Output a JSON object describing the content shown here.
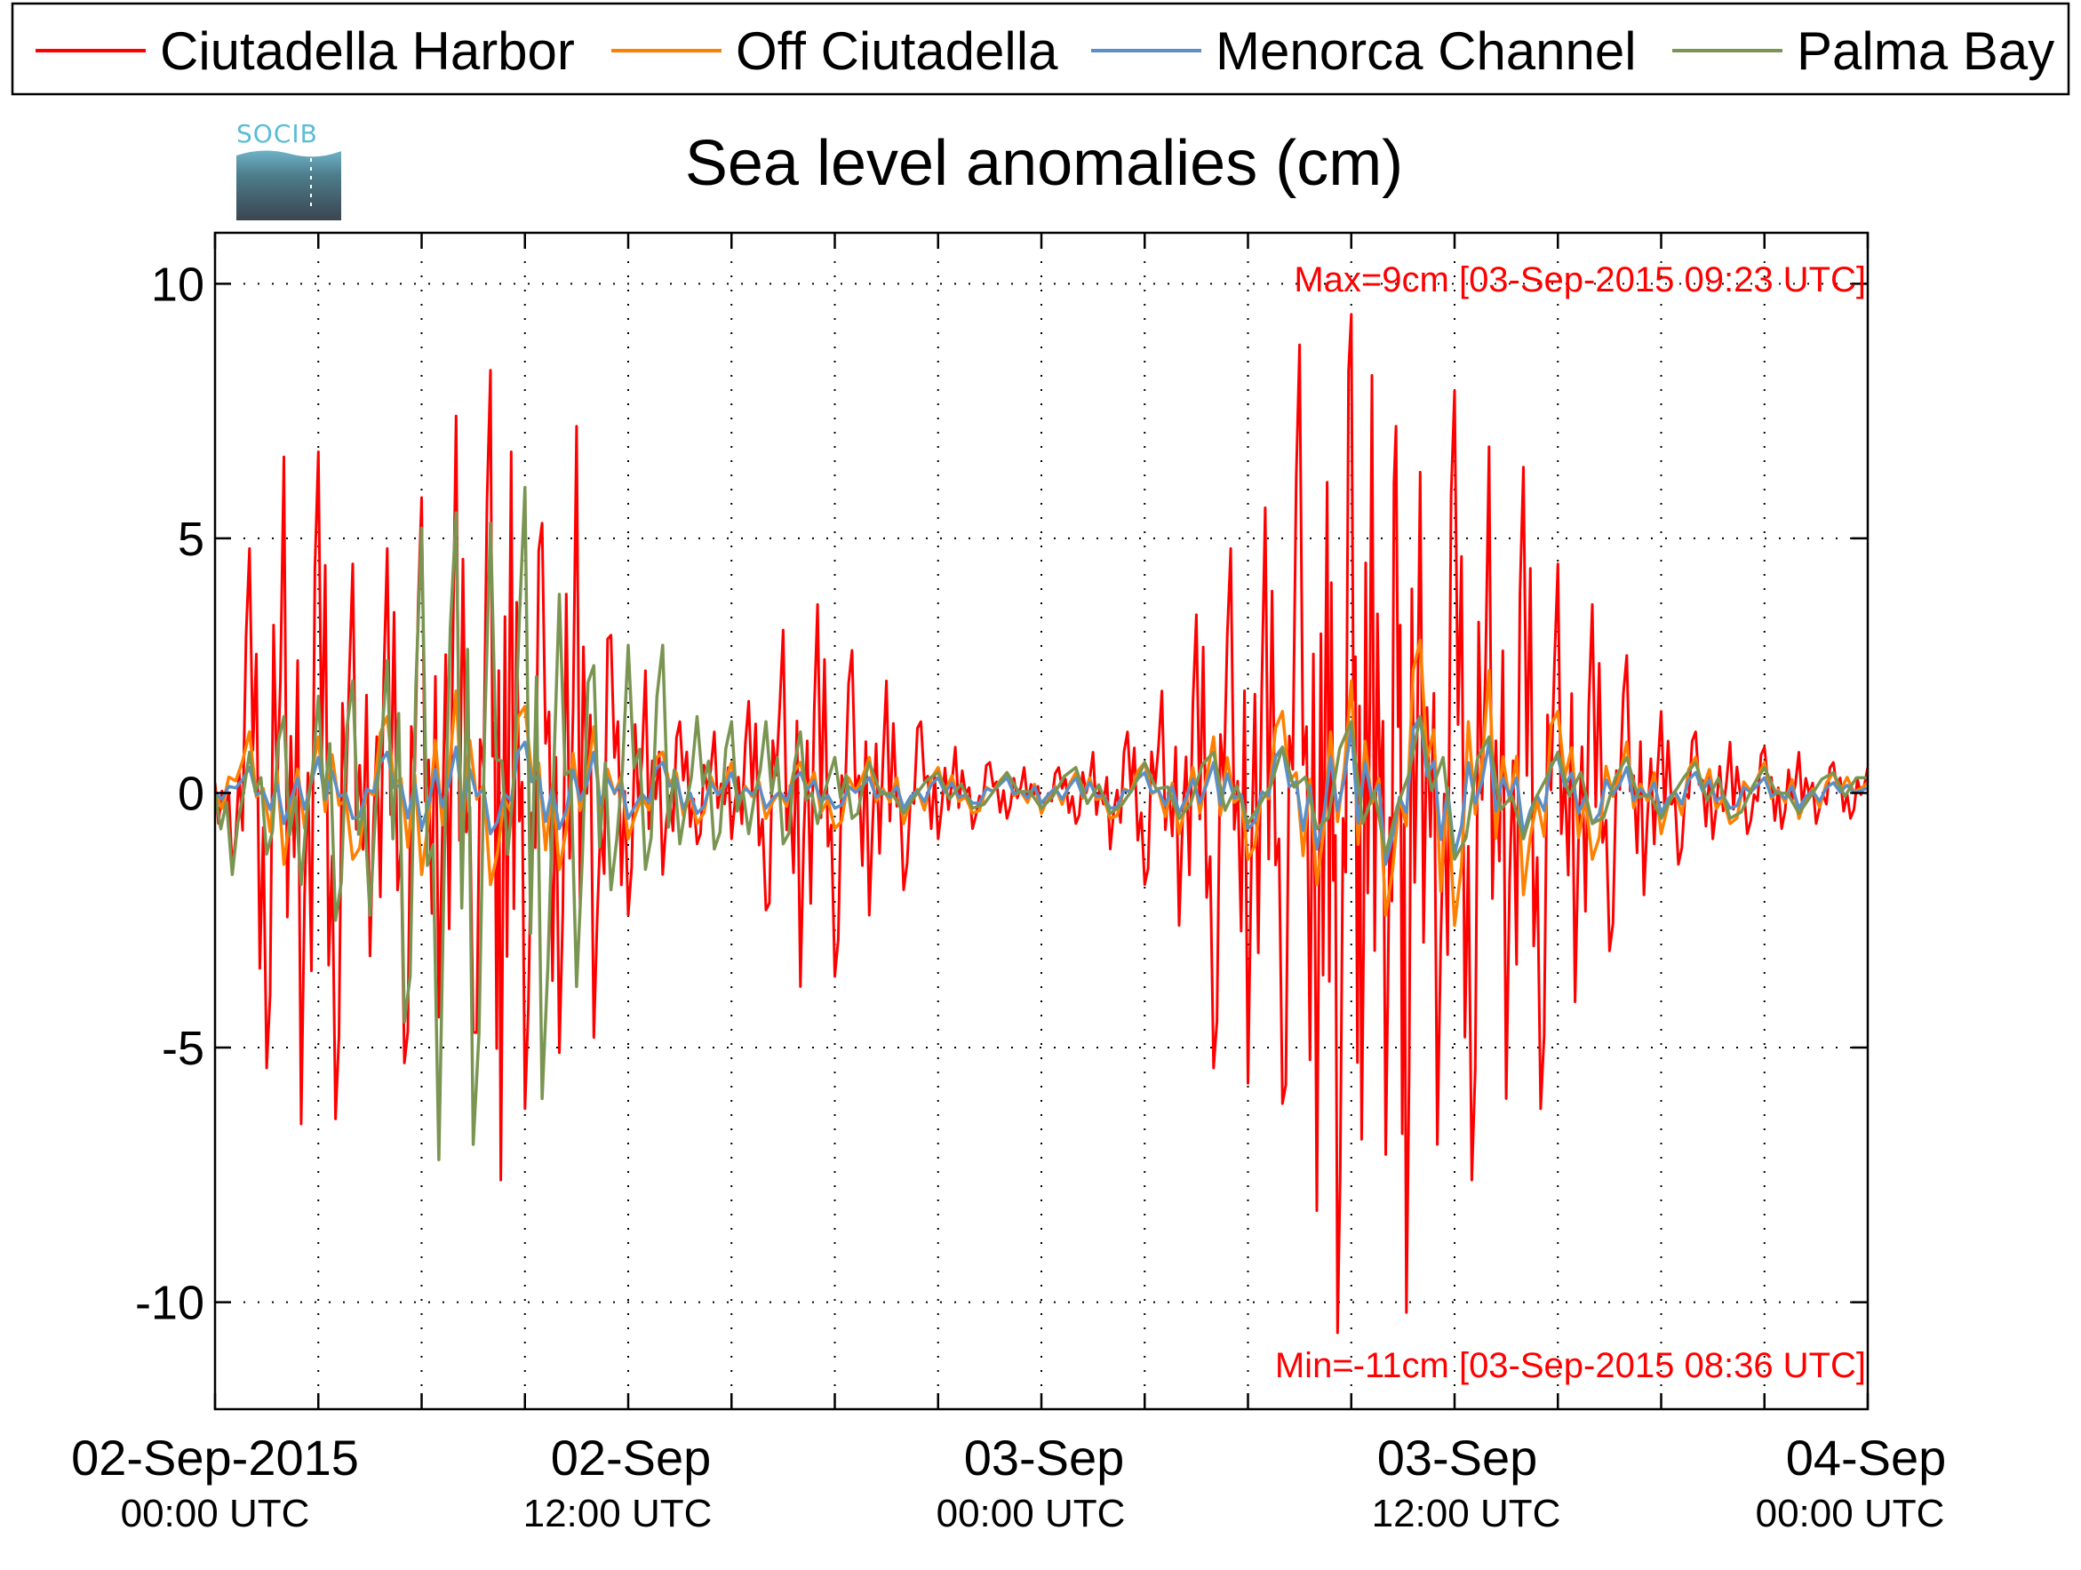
{
  "chart_data": {
    "type": "line",
    "title": "Sea level anomalies (cm)",
    "xlabel": "",
    "ylabel": "",
    "ylim": [
      -12.1,
      11
    ],
    "xlim_hours": [
      0,
      48
    ],
    "y_ticks": [
      10,
      5,
      0,
      -5,
      -10
    ],
    "y_tick_labels": [
      "10",
      "5",
      "0",
      "-5",
      "-10"
    ],
    "x_ticks": [
      {
        "hours": 0,
        "date": "02-Sep-2015",
        "time": "00:00 UTC"
      },
      {
        "hours": 12,
        "date": "02-Sep",
        "time": "12:00 UTC"
      },
      {
        "hours": 24,
        "date": "03-Sep",
        "time": "00:00 UTC"
      },
      {
        "hours": 36,
        "date": "03-Sep",
        "time": "12:00 UTC"
      },
      {
        "hours": 48,
        "date": "04-Sep",
        "time": "00:00 UTC"
      }
    ],
    "x_minor_ticks_hours": [
      3,
      6,
      9,
      15,
      18,
      21,
      27,
      30,
      33,
      39,
      42,
      45
    ],
    "grid": true,
    "legend_position": "top",
    "annotations": {
      "max": "Max=9cm [03-Sep-2015 09:23 UTC]",
      "min": "Min=-11cm [03-Sep-2015 08:36 UTC]"
    },
    "series": [
      {
        "name": "Ciutadella Harbor",
        "color": "#ff0000",
        "x": [
          0,
          0.5,
          1,
          1.5,
          2,
          2.5,
          3,
          3.5,
          4,
          4.5,
          5,
          5.5,
          6,
          6.5,
          7,
          7.5,
          8,
          8.3,
          8.6,
          9,
          9.5,
          10,
          10.5,
          11,
          11.5,
          12,
          12.5,
          13,
          13.5,
          14,
          14.5,
          15,
          15.5,
          16,
          16.5,
          17,
          17.5,
          18,
          18.5,
          19,
          19.5,
          20,
          20.5,
          21,
          21.5,
          22,
          22.5,
          23,
          23.5,
          24,
          24.5,
          25,
          25.5,
          26,
          26.5,
          27,
          27.5,
          28,
          28.5,
          29,
          29.5,
          30,
          30.5,
          31,
          31.5,
          32,
          32.3,
          32.6,
          33,
          33.3,
          33.6,
          34,
          34.3,
          34.6,
          35,
          35.5,
          36,
          36.5,
          37,
          37.5,
          38,
          38.5,
          39,
          39.5,
          40,
          40.5,
          41,
          41.5,
          42,
          42.5,
          43,
          43.5,
          44,
          44.5,
          45,
          45.5,
          46,
          46.5,
          47,
          47.5,
          48
        ],
        "y": [
          0.2,
          -1.5,
          4.8,
          -5.4,
          6.6,
          -6.5,
          6.7,
          -6.4,
          4.5,
          -3.2,
          4.8,
          -5.3,
          5.8,
          -4.4,
          7.4,
          -4.7,
          8.3,
          -7.6,
          6.7,
          -6.2,
          5.3,
          -5.1,
          7.2,
          -4.8,
          3.1,
          -2.4,
          2.4,
          -1.6,
          1.4,
          -1.0,
          1.2,
          -0.9,
          1.8,
          -2.3,
          3.2,
          -3.8,
          3.7,
          -3.6,
          2.8,
          -2.4,
          2.2,
          -1.9,
          1.4,
          -0.9,
          0.9,
          -0.7,
          0.6,
          -0.5,
          0.5,
          -0.4,
          0.5,
          -0.6,
          0.8,
          -1.1,
          1.2,
          -1.8,
          2.0,
          -2.6,
          3.5,
          -5.4,
          4.8,
          -5.7,
          5.6,
          -6.1,
          8.8,
          -8.2,
          6.1,
          -10.6,
          9.4,
          -6.8,
          8.2,
          -7.1,
          7.2,
          -10.2,
          6.3,
          -6.9,
          7.9,
          -7.6,
          6.8,
          -6.0,
          6.4,
          -6.2,
          4.5,
          -4.1,
          3.7,
          -3.1,
          2.7,
          -2.0,
          1.6,
          -1.4,
          1.2,
          -0.9,
          1.0,
          -0.8,
          0.9,
          -0.7,
          0.8,
          -0.6,
          0.6,
          -0.5,
          0.5
        ]
      },
      {
        "name": "Off Ciutadella",
        "color": "#ff8000",
        "x": [
          0,
          1,
          2,
          3,
          4,
          5,
          6,
          7,
          8,
          9,
          10,
          11,
          12,
          13,
          14,
          15,
          16,
          17,
          18,
          19,
          20,
          21,
          22,
          23,
          24,
          25,
          26,
          27,
          28,
          29,
          30,
          31,
          32,
          33,
          34,
          35,
          36,
          37,
          38,
          39,
          40,
          41,
          42,
          43,
          44,
          45,
          46,
          47,
          48
        ],
        "y": [
          0,
          1.2,
          -1.4,
          1.1,
          -1.3,
          1.5,
          -1.6,
          2.0,
          -1.8,
          1.7,
          -1.5,
          1.3,
          -0.9,
          0.8,
          -0.6,
          0.6,
          -0.5,
          0.6,
          -0.7,
          0.7,
          -0.6,
          0.5,
          -0.4,
          0.4,
          -0.4,
          0.4,
          -0.5,
          0.6,
          -0.8,
          1.1,
          -1.3,
          1.6,
          -1.8,
          2.2,
          -2.4,
          3.0,
          -2.6,
          2.4,
          -2.0,
          1.6,
          -1.3,
          1.0,
          -0.8,
          0.7,
          -0.6,
          0.6,
          -0.5,
          0.4,
          0.2
        ]
      },
      {
        "name": "Menorca Channel",
        "color": "#5b8fc7",
        "x": [
          0,
          1,
          2,
          3,
          4,
          5,
          6,
          7,
          8,
          9,
          10,
          11,
          12,
          13,
          14,
          15,
          16,
          17,
          18,
          19,
          20,
          21,
          22,
          23,
          24,
          25,
          26,
          27,
          28,
          29,
          30,
          31,
          32,
          33,
          34,
          35,
          36,
          37,
          38,
          39,
          40,
          41,
          42,
          43,
          44,
          45,
          46,
          47,
          48
        ],
        "y": [
          0,
          0.5,
          -0.6,
          0.7,
          -0.5,
          0.8,
          -0.7,
          0.9,
          -0.8,
          1.0,
          -0.7,
          0.8,
          -0.5,
          0.6,
          -0.4,
          0.4,
          -0.3,
          0.4,
          -0.3,
          0.3,
          -0.3,
          0.3,
          -0.2,
          0.3,
          -0.2,
          0.3,
          -0.3,
          0.4,
          -0.4,
          0.6,
          -0.7,
          0.9,
          -1.1,
          1.3,
          -1.4,
          1.5,
          -1.2,
          1.0,
          -0.8,
          0.7,
          -0.6,
          0.5,
          -0.4,
          0.4,
          -0.3,
          0.3,
          -0.3,
          0.2,
          0.1
        ]
      },
      {
        "name": "Palma Bay",
        "color": "#7a9552",
        "x": [
          0,
          0.5,
          1,
          1.5,
          2,
          2.5,
          3,
          3.5,
          4,
          4.5,
          5,
          5.5,
          6,
          6.5,
          7,
          7.5,
          8,
          8.5,
          9,
          9.5,
          10,
          10.5,
          11,
          11.5,
          12,
          12.5,
          13,
          13.5,
          14,
          14.5,
          15,
          15.5,
          16,
          16.5,
          17,
          17.5,
          18,
          18.5,
          19,
          20,
          21,
          22,
          23,
          24,
          25,
          26,
          27,
          28,
          29,
          30,
          31,
          32,
          33,
          34,
          35,
          36,
          37,
          38,
          39,
          40,
          41,
          42,
          43,
          44,
          45,
          46,
          47,
          48
        ],
        "y": [
          0,
          -1.6,
          0.8,
          -1.2,
          1.5,
          -1.8,
          1.9,
          -2.5,
          2.2,
          -2.4,
          2.6,
          -4.5,
          5.2,
          -7.2,
          5.5,
          -6.9,
          5.3,
          -1.2,
          6.0,
          -6.0,
          3.9,
          -3.8,
          2.5,
          -1.9,
          2.9,
          -1.5,
          2.9,
          -1.0,
          1.5,
          -1.1,
          1.4,
          -0.8,
          1.4,
          -1.0,
          1.2,
          -0.6,
          0.7,
          -0.5,
          0.6,
          -0.4,
          0.4,
          -0.3,
          0.4,
          -0.3,
          0.5,
          -0.4,
          0.6,
          -0.5,
          0.8,
          -0.6,
          0.9,
          -0.7,
          1.4,
          -1.2,
          1.5,
          -1.3,
          1.1,
          -0.9,
          0.8,
          -0.6,
          0.7,
          -0.5,
          0.6,
          -0.5,
          0.5,
          -0.4,
          0.4,
          0.3
        ]
      }
    ]
  },
  "logo": {
    "text": "SOCIB",
    "top_color": "#5bbcd6",
    "bottom_color": "#3a4550"
  }
}
